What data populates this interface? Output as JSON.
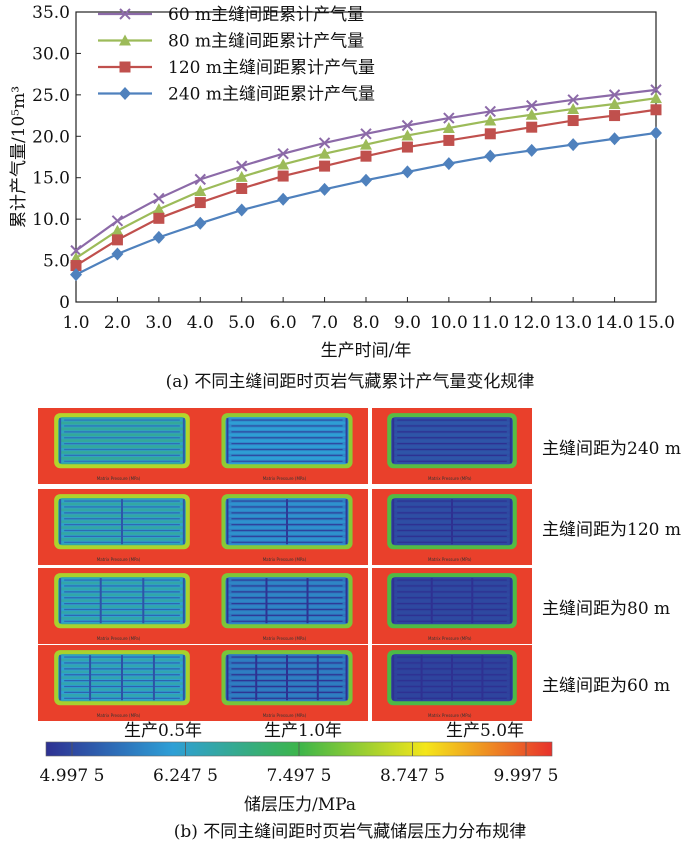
{
  "chart_data": [
    {
      "type": "line",
      "title": "",
      "xlabel": "生产时间/年",
      "ylabel": "累计产气量/10⁵m³",
      "xlim": [
        1.0,
        15.0
      ],
      "ylim": [
        0.0,
        35.0
      ],
      "x": [
        1,
        2,
        3,
        4,
        5,
        6,
        7,
        8,
        9,
        10,
        11,
        12,
        13,
        14,
        15
      ],
      "x_tick_labels": [
        "1.0",
        "2.0",
        "3.0",
        "4.0",
        "5.0",
        "6.0",
        "7.0",
        "8.0",
        "9.0",
        "10.0",
        "11.0",
        "12.0",
        "13.0",
        "14.0",
        "15.0"
      ],
      "y_tick_labels": [
        "0",
        "5.0",
        "10.0",
        "15.0",
        "20.0",
        "25.0",
        "30.0",
        "35.0"
      ],
      "legend_position": "top-left",
      "series": [
        {
          "name": "60 m主缝间距累计产气量",
          "color": "#8c6aa8",
          "marker": "x",
          "values": [
            6.2,
            9.8,
            12.5,
            14.8,
            16.4,
            17.9,
            19.2,
            20.3,
            21.3,
            22.2,
            23.0,
            23.7,
            24.4,
            25.0,
            25.6
          ]
        },
        {
          "name": "80 m主缝间距累计产气量",
          "color": "#9cbb59",
          "marker": "triangle",
          "values": [
            5.3,
            8.6,
            11.2,
            13.4,
            15.1,
            16.6,
            17.9,
            19.0,
            20.1,
            21.0,
            21.9,
            22.6,
            23.3,
            23.9,
            24.6
          ]
        },
        {
          "name": "120 m主缝间距累计产气量",
          "color": "#c0504d",
          "marker": "square",
          "values": [
            4.4,
            7.5,
            10.1,
            12.0,
            13.7,
            15.2,
            16.4,
            17.6,
            18.7,
            19.5,
            20.3,
            21.1,
            21.9,
            22.5,
            23.2
          ]
        },
        {
          "name": "240 m主缝间距累计产气量",
          "color": "#4f81bd",
          "marker": "diamond",
          "values": [
            3.3,
            5.8,
            7.8,
            9.5,
            11.1,
            12.4,
            13.6,
            14.7,
            15.7,
            16.7,
            17.6,
            18.3,
            19.0,
            19.7,
            20.4
          ]
        }
      ]
    },
    {
      "type": "heatmap",
      "colorbar_label": "储层压力/MPa",
      "colorbar_ticks": [
        "4.997 5",
        "6.247 5",
        "7.497 5",
        "8.747 5",
        "9.997 5"
      ],
      "colorbar_range": [
        4.9975,
        9.9975
      ],
      "colors": [
        "#2e3192",
        "#2e9fd6",
        "#3cb54a",
        "#f4e61a",
        "#e8322c"
      ],
      "columns": [
        "生产0.5年",
        "生产1.0年",
        "生产5.0年"
      ],
      "rows": [
        {
          "label": "主缝间距为240 m",
          "main_fractures": 1,
          "inner_depletion": [
            0.35,
            0.55,
            0.85
          ]
        },
        {
          "label": "主缝间距为120 m",
          "main_fractures": 2,
          "inner_depletion": [
            0.38,
            0.6,
            0.88
          ]
        },
        {
          "label": "主缝间距为80 m",
          "main_fractures": 3,
          "inner_depletion": [
            0.4,
            0.65,
            0.9
          ]
        },
        {
          "label": "主缝间距为60 m",
          "main_fractures": 4,
          "inner_depletion": [
            0.42,
            0.68,
            0.92
          ]
        }
      ],
      "panel_caption": "Matrix Pressure (MPa)"
    }
  ],
  "captions": {
    "a": "(a) 不同主缝间距时页岩气藏累计产气量变化规律",
    "b": "(b) 不同主缝间距时页岩气藏储层压力分布规律"
  }
}
